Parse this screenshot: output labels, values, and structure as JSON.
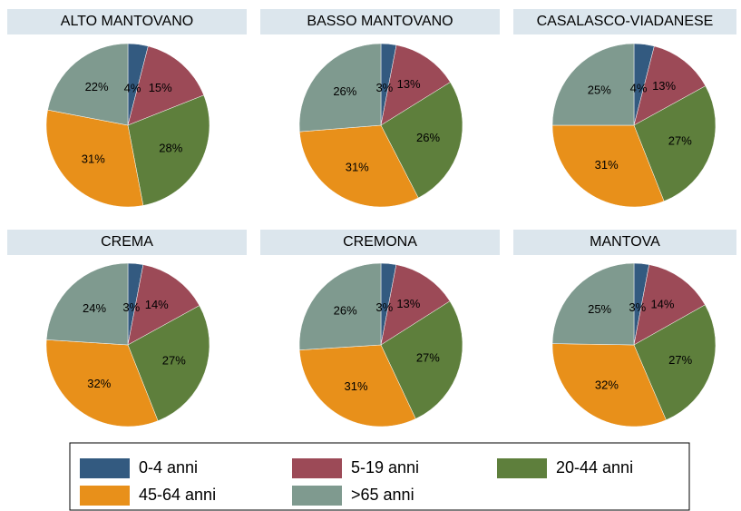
{
  "chart_data": [
    {
      "type": "pie",
      "title": "ALTO MANTOVANO",
      "categories": [
        "0-4 anni",
        "5-19 anni",
        "20-44 anni",
        "45-64 anni",
        ">65 anni"
      ],
      "values": [
        4,
        15,
        28,
        31,
        22
      ],
      "value_labels": [
        "4%",
        "15%",
        "28%",
        "31%",
        "22%"
      ],
      "colors": [
        "#335a80",
        "#9c4a57",
        "#5e7f3c",
        "#e8901a",
        "#7f9a8f"
      ]
    },
    {
      "type": "pie",
      "title": "BASSO MANTOVANO",
      "categories": [
        "0-4 anni",
        "5-19 anni",
        "20-44 anni",
        "45-64 anni",
        ">65 anni"
      ],
      "values": [
        3,
        13,
        26,
        31,
        26
      ],
      "value_labels": [
        "3%",
        "13%",
        "26%",
        "31%",
        "26%"
      ],
      "colors": [
        "#335a80",
        "#9c4a57",
        "#5e7f3c",
        "#e8901a",
        "#7f9a8f"
      ]
    },
    {
      "type": "pie",
      "title": "CASALASCO-VIADANESE",
      "categories": [
        "0-4 anni",
        "5-19 anni",
        "20-44 anni",
        "45-64 anni",
        ">65 anni"
      ],
      "values": [
        4,
        13,
        27,
        31,
        25
      ],
      "value_labels": [
        "4%",
        "13%",
        "27%",
        "31%",
        "25%"
      ],
      "colors": [
        "#335a80",
        "#9c4a57",
        "#5e7f3c",
        "#e8901a",
        "#7f9a8f"
      ]
    },
    {
      "type": "pie",
      "title": "CREMA",
      "categories": [
        "0-4 anni",
        "5-19 anni",
        "20-44 anni",
        "45-64 anni",
        ">65 anni"
      ],
      "values": [
        3,
        14,
        27,
        32,
        24
      ],
      "value_labels": [
        "3%",
        "14%",
        "27%",
        "32%",
        "24%"
      ],
      "colors": [
        "#335a80",
        "#9c4a57",
        "#5e7f3c",
        "#e8901a",
        "#7f9a8f"
      ]
    },
    {
      "type": "pie",
      "title": "CREMONA",
      "categories": [
        "0-4 anni",
        "5-19 anni",
        "20-44 anni",
        "45-64 anni",
        ">65 anni"
      ],
      "values": [
        3,
        13,
        27,
        31,
        26
      ],
      "value_labels": [
        "3%",
        "13%",
        "27%",
        "31%",
        "26%"
      ],
      "colors": [
        "#335a80",
        "#9c4a57",
        "#5e7f3c",
        "#e8901a",
        "#7f9a8f"
      ]
    },
    {
      "type": "pie",
      "title": "MANTOVA",
      "categories": [
        "0-4 anni",
        "5-19 anni",
        "20-44 anni",
        "45-64 anni",
        ">65 anni"
      ],
      "values": [
        3,
        14,
        27,
        32,
        25
      ],
      "value_labels": [
        "3%",
        "14%",
        "27%",
        "32%",
        "25%"
      ],
      "colors": [
        "#335a80",
        "#9c4a57",
        "#5e7f3c",
        "#e8901a",
        "#7f9a8f"
      ]
    }
  ]
}
